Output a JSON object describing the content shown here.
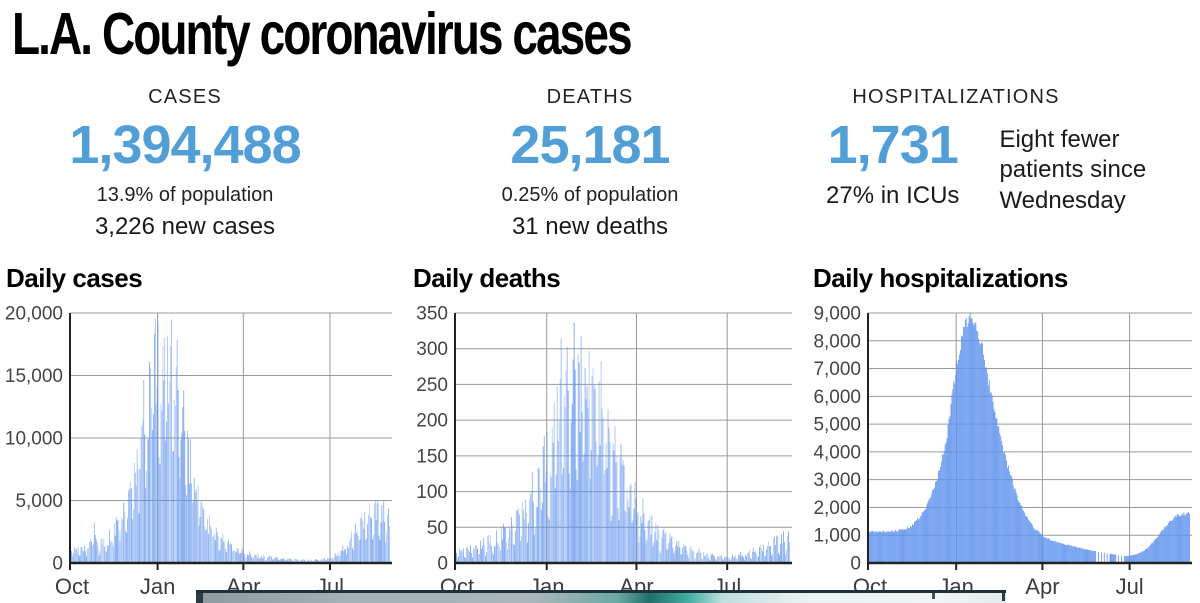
{
  "page": {
    "title": "L.A. County coronavirus cases"
  },
  "colors": {
    "accent_blue": "#529fd7",
    "bar_blue": "#5f93ee",
    "grid_gray": "#999999",
    "axis_dark": "#222222",
    "tick_text": "#454545"
  },
  "stats": [
    {
      "id": "cases",
      "label": "CASES",
      "value": "1,394,488",
      "line1": "13.9% of population",
      "line2": "3,226 new cases"
    },
    {
      "id": "deaths",
      "label": "DEATHS",
      "value": "25,181",
      "line1": "0.25% of population",
      "line2": "31 new deaths"
    },
    {
      "id": "hospitalizations",
      "label": "HOSPITALIZATIONS",
      "value": "1,731",
      "line1": "27% in ICUs",
      "note": "Eight fewer patients since Wednesday"
    }
  ],
  "chart_data": [
    {
      "type": "bar",
      "title": "Daily cases",
      "x_unit": "days since Oct 1",
      "total_days": 336,
      "x_tick_labels": [
        "Oct",
        "Jan",
        "Apr",
        "Jul"
      ],
      "x_tick_days": [
        0,
        92,
        182,
        273
      ],
      "ylim": [
        0,
        20000
      ],
      "y_ticks": [
        0,
        5000,
        10000,
        15000,
        20000
      ],
      "y_tick_labels": [
        "0",
        "5,000",
        "10,000",
        "15,000",
        "20,000"
      ],
      "grid": true,
      "legend": false,
      "keypoints": [
        [
          0,
          950
        ],
        [
          10,
          1100
        ],
        [
          18,
          1250
        ],
        [
          26,
          2900
        ],
        [
          28,
          1300
        ],
        [
          35,
          1600
        ],
        [
          45,
          2400
        ],
        [
          55,
          3800
        ],
        [
          61,
          4600
        ],
        [
          68,
          7000
        ],
        [
          75,
          10500
        ],
        [
          82,
          13800
        ],
        [
          88,
          15000
        ],
        [
          92,
          16000
        ],
        [
          96,
          17200
        ],
        [
          100,
          15500
        ],
        [
          104,
          17000
        ],
        [
          108,
          13800
        ],
        [
          112,
          15800
        ],
        [
          116,
          12200
        ],
        [
          120,
          10500
        ],
        [
          124,
          9200
        ],
        [
          130,
          6400
        ],
        [
          137,
          4700
        ],
        [
          144,
          3300
        ],
        [
          151,
          2700
        ],
        [
          158,
          2000
        ],
        [
          165,
          1500
        ],
        [
          172,
          1150
        ],
        [
          182,
          880
        ],
        [
          192,
          640
        ],
        [
          202,
          500
        ],
        [
          212,
          430
        ],
        [
          222,
          340
        ],
        [
          232,
          300
        ],
        [
          243,
          260
        ],
        [
          253,
          240
        ],
        [
          263,
          290
        ],
        [
          273,
          430
        ],
        [
          280,
          720
        ],
        [
          287,
          1150
        ],
        [
          294,
          1900
        ],
        [
          301,
          2700
        ],
        [
          308,
          3400
        ],
        [
          315,
          4000
        ],
        [
          322,
          4300
        ],
        [
          335,
          3500
        ]
      ],
      "noise_amplitude": 0.3,
      "weekend_dip": 0.62
    },
    {
      "type": "bar",
      "title": "Daily deaths",
      "x_unit": "days since Oct 1",
      "total_days": 336,
      "x_tick_labels": [
        "Oct",
        "Jan",
        "Apr",
        "Jul"
      ],
      "x_tick_days": [
        0,
        92,
        182,
        273
      ],
      "ylim": [
        0,
        350
      ],
      "y_ticks": [
        0,
        50,
        100,
        150,
        200,
        250,
        300,
        350
      ],
      "y_tick_labels": [
        "0",
        "50",
        "100",
        "150",
        "200",
        "250",
        "300",
        "350"
      ],
      "grid": true,
      "legend": false,
      "keypoints": [
        [
          0,
          14
        ],
        [
          10,
          18
        ],
        [
          20,
          24
        ],
        [
          30,
          28
        ],
        [
          40,
          34
        ],
        [
          50,
          44
        ],
        [
          61,
          58
        ],
        [
          68,
          72
        ],
        [
          75,
          92
        ],
        [
          82,
          112
        ],
        [
          88,
          132
        ],
        [
          92,
          150
        ],
        [
          96,
          175
        ],
        [
          100,
          205
        ],
        [
          104,
          235
        ],
        [
          108,
          255
        ],
        [
          112,
          265
        ],
        [
          116,
          248
        ],
        [
          120,
          268
        ],
        [
          124,
          258
        ],
        [
          128,
          266
        ],
        [
          132,
          248
        ],
        [
          136,
          260
        ],
        [
          140,
          232
        ],
        [
          144,
          238
        ],
        [
          148,
          218
        ],
        [
          151,
          198
        ],
        [
          158,
          162
        ],
        [
          165,
          132
        ],
        [
          172,
          108
        ],
        [
          178,
          92
        ],
        [
          182,
          84
        ],
        [
          189,
          68
        ],
        [
          196,
          54
        ],
        [
          203,
          44
        ],
        [
          212,
          34
        ],
        [
          222,
          27
        ],
        [
          232,
          20
        ],
        [
          243,
          16
        ],
        [
          253,
          12
        ],
        [
          263,
          10
        ],
        [
          273,
          9
        ],
        [
          283,
          11
        ],
        [
          293,
          14
        ],
        [
          303,
          18
        ],
        [
          313,
          24
        ],
        [
          321,
          32
        ],
        [
          335,
          36
        ]
      ],
      "noise_amplitude": 0.32,
      "weekend_dip": 0.5
    },
    {
      "type": "bar",
      "title": "Daily hospitalizations",
      "x_unit": "days since Oct 1",
      "total_days": 336,
      "x_tick_labels": [
        "Oct",
        "Jan",
        "Apr",
        "Jul"
      ],
      "x_tick_days": [
        0,
        92,
        182,
        273
      ],
      "ylim": [
        0,
        9000
      ],
      "y_ticks": [
        0,
        1000,
        2000,
        3000,
        4000,
        5000,
        6000,
        7000,
        8000,
        9000
      ],
      "y_tick_labels": [
        "0",
        "1,000",
        "2,000",
        "3,000",
        "4,000",
        "5,000",
        "6,000",
        "7,000",
        "8,000",
        "9,000"
      ],
      "grid": true,
      "legend": false,
      "keypoints": [
        [
          0,
          1120
        ],
        [
          15,
          1130
        ],
        [
          31,
          1160
        ],
        [
          45,
          1320
        ],
        [
          55,
          1720
        ],
        [
          61,
          2050
        ],
        [
          68,
          2650
        ],
        [
          75,
          3450
        ],
        [
          82,
          4650
        ],
        [
          88,
          6100
        ],
        [
          92,
          7100
        ],
        [
          97,
          8150
        ],
        [
          102,
          8700
        ],
        [
          106,
          8850
        ],
        [
          110,
          8700
        ],
        [
          114,
          8350
        ],
        [
          118,
          7850
        ],
        [
          123,
          6950
        ],
        [
          130,
          5750
        ],
        [
          137,
          4650
        ],
        [
          144,
          3650
        ],
        [
          151,
          2850
        ],
        [
          158,
          2150
        ],
        [
          165,
          1650
        ],
        [
          172,
          1280
        ],
        [
          182,
          980
        ],
        [
          192,
          800
        ],
        [
          202,
          700
        ],
        [
          212,
          610
        ],
        [
          222,
          530
        ],
        [
          232,
          450
        ],
        [
          243,
          390
        ],
        [
          250,
          340
        ],
        [
          257,
          310
        ],
        [
          263,
          280
        ],
        [
          268,
          250
        ],
        [
          273,
          265
        ],
        [
          280,
          320
        ],
        [
          287,
          430
        ],
        [
          294,
          640
        ],
        [
          301,
          920
        ],
        [
          308,
          1230
        ],
        [
          315,
          1520
        ],
        [
          322,
          1720
        ],
        [
          335,
          1800
        ]
      ],
      "noise_amplitude": 0.035,
      "weekend_dip": 1,
      "sparse_ranges": [
        [
          238,
          252
        ],
        [
          258,
          266
        ]
      ]
    }
  ]
}
